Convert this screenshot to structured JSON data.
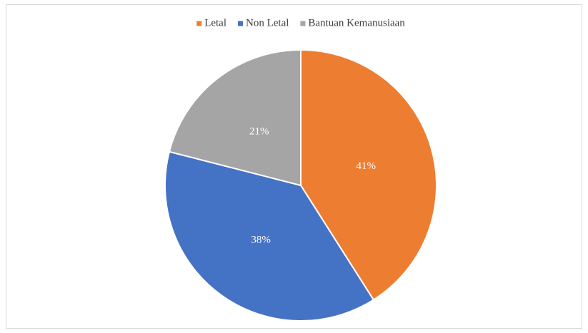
{
  "chart_data": {
    "type": "pie",
    "categories": [
      "Letal",
      "Non Letal",
      "Bantuan Kemanusiaan"
    ],
    "values": [
      41,
      38,
      21
    ],
    "value_labels": [
      "41%",
      "38%",
      "21%"
    ],
    "colors": [
      "#ed7d31",
      "#4472c4",
      "#a5a5a5"
    ],
    "legend": "top"
  }
}
